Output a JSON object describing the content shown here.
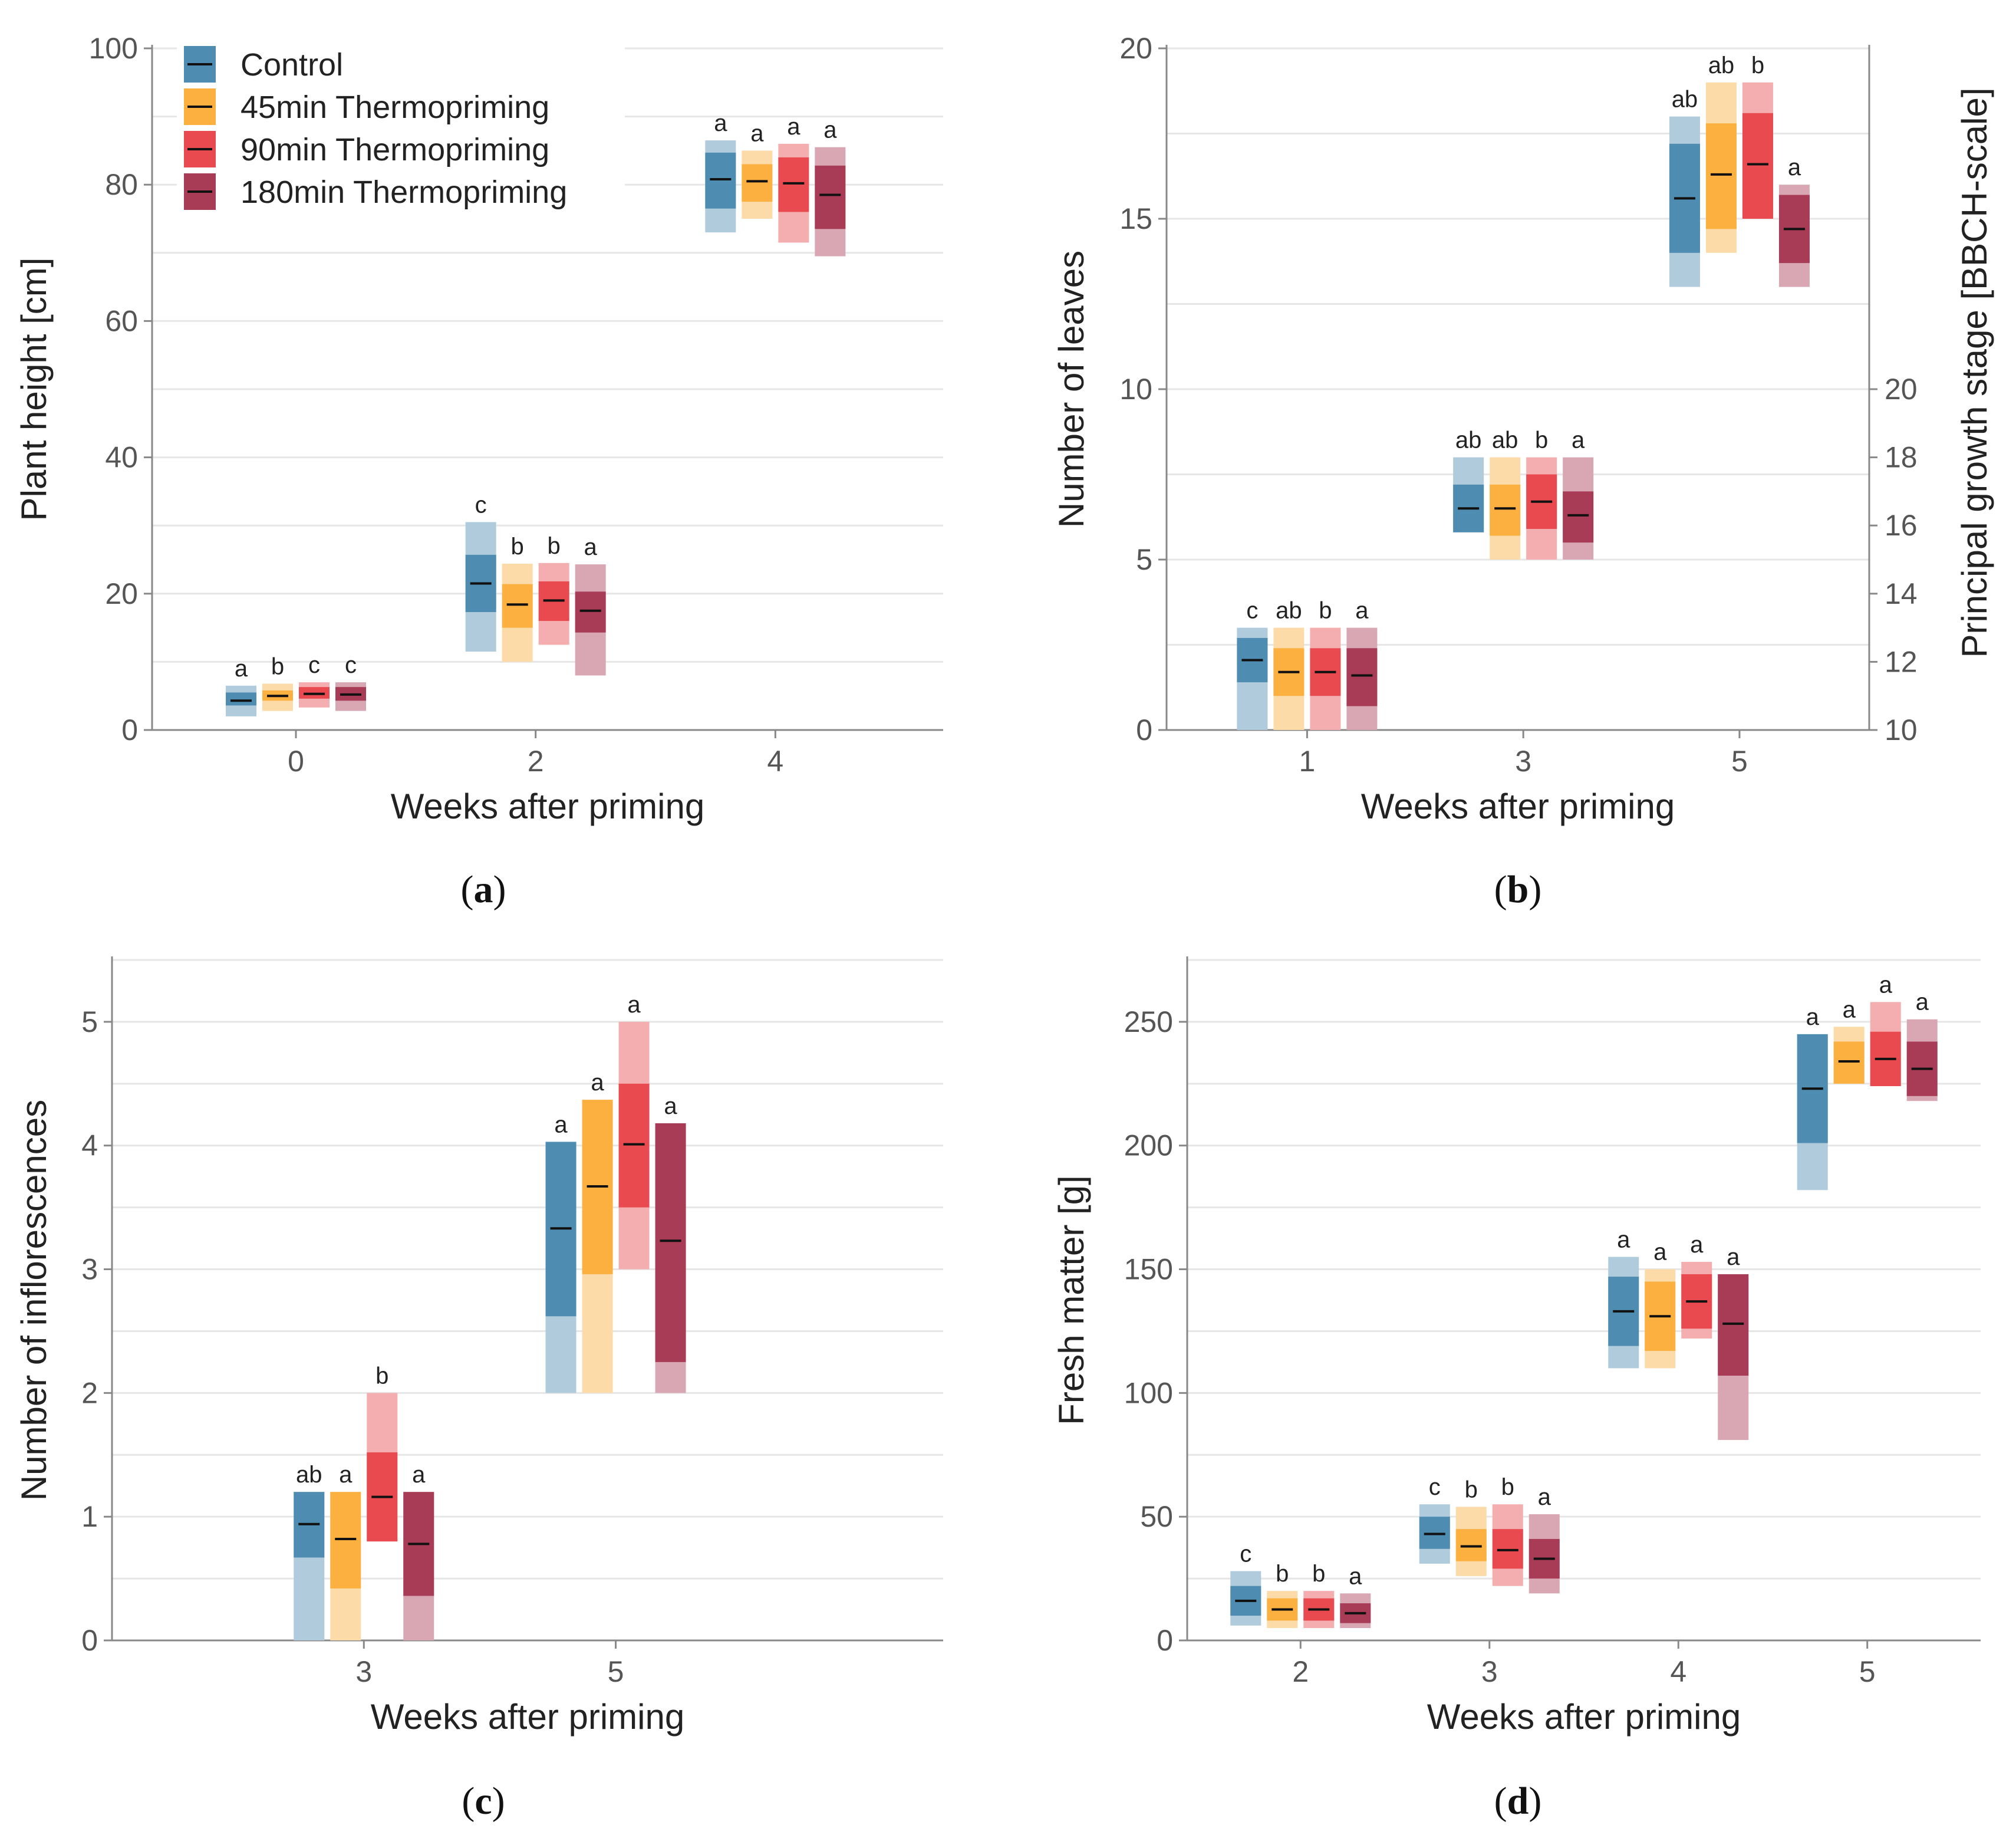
{
  "colors": {
    "Control": "#4e8cb1",
    "45min Thermopriming": "#fbb040",
    "90min Thermopriming": "#e84a4f",
    "180min Thermopriming": "#a83b55",
    "grid": "#e6e6e6",
    "axis": "#888888"
  },
  "legend": {
    "entries": [
      "Control",
      "45min Thermopriming",
      "90min Thermopriming",
      "180min Thermopriming"
    ]
  },
  "chart_data": [
    {
      "id": "a",
      "panel_label": "a",
      "type": "bar",
      "xlabel": "Weeks after priming",
      "ylabel": "Plant height [cm]",
      "ylim": [
        0,
        100
      ],
      "yticks": [
        0,
        20,
        40,
        60,
        80,
        100
      ],
      "xlim": [
        -1.2,
        5.4
      ],
      "xticks": [
        0,
        2,
        4
      ],
      "groups": [
        {
          "x": 0,
          "letters": [
            "a",
            "b",
            "c",
            "c"
          ],
          "series": [
            {
              "name": "Control",
              "min": 2,
              "q1": 3.6,
              "median": 4.3,
              "q3": 5.5,
              "max": 6.5
            },
            {
              "name": "45min Thermopriming",
              "min": 2.8,
              "q1": 4.3,
              "median": 5,
              "q3": 5.8,
              "max": 6.8
            },
            {
              "name": "90min Thermopriming",
              "min": 3.3,
              "q1": 4.6,
              "median": 5.3,
              "q3": 6.3,
              "max": 7
            },
            {
              "name": "180min Thermopriming",
              "min": 2.8,
              "q1": 4.3,
              "median": 5.2,
              "q3": 6.3,
              "max": 7
            }
          ]
        },
        {
          "x": 2,
          "letters": [
            "c",
            "b",
            "b",
            "a"
          ],
          "series": [
            {
              "name": "Control",
              "min": 11.5,
              "q1": 17.3,
              "median": 21.5,
              "q3": 25.7,
              "max": 30.5
            },
            {
              "name": "45min Thermopriming",
              "min": 10,
              "q1": 15,
              "median": 18.4,
              "q3": 21.4,
              "max": 24.4
            },
            {
              "name": "90min Thermopriming",
              "min": 12.5,
              "q1": 16,
              "median": 19,
              "q3": 21.8,
              "max": 24.5
            },
            {
              "name": "180min Thermopriming",
              "min": 8,
              "q1": 14.3,
              "median": 17.5,
              "q3": 20.3,
              "max": 24.3
            }
          ]
        },
        {
          "x": 4,
          "letters": [
            "a",
            "a",
            "a",
            "a"
          ],
          "series": [
            {
              "name": "Control",
              "min": 73,
              "q1": 76.5,
              "median": 80.8,
              "q3": 84.7,
              "max": 86.5
            },
            {
              "name": "45min Thermopriming",
              "min": 75,
              "q1": 77.5,
              "median": 80.5,
              "q3": 83,
              "max": 85
            },
            {
              "name": "90min Thermopriming",
              "min": 71.5,
              "q1": 76,
              "median": 80.2,
              "q3": 84,
              "max": 86
            },
            {
              "name": "180min Thermopriming",
              "min": 69.5,
              "q1": 73.5,
              "median": 78.5,
              "q3": 82.8,
              "max": 85.5
            }
          ]
        }
      ]
    },
    {
      "id": "b",
      "panel_label": "b",
      "type": "bar",
      "xlabel": "Weeks after priming",
      "ylabel": "Number of leaves",
      "y2label": "Principal growth stage [BBCH-scale]",
      "ylim": [
        0,
        20
      ],
      "yticks": [
        0,
        5,
        10,
        15,
        20
      ],
      "y2ticks": [
        10,
        12,
        14,
        16,
        18,
        20
      ],
      "xlim": [
        -0.3,
        6.2
      ],
      "xticks": [
        1,
        3,
        5
      ],
      "groups": [
        {
          "x": 1,
          "letters": [
            "c",
            "ab",
            "b",
            "a"
          ],
          "series": [
            {
              "name": "Control",
              "min": 0,
              "q1": 1.4,
              "median": 2.05,
              "q3": 2.7,
              "max": 3
            },
            {
              "name": "45min Thermopriming",
              "min": 0,
              "q1": 1,
              "median": 1.7,
              "q3": 2.4,
              "max": 3
            },
            {
              "name": "90min Thermopriming",
              "min": 0,
              "q1": 1,
              "median": 1.7,
              "q3": 2.4,
              "max": 3
            },
            {
              "name": "180min Thermopriming",
              "min": 0,
              "q1": 0.7,
              "median": 1.6,
              "q3": 2.4,
              "max": 3
            }
          ]
        },
        {
          "x": 3,
          "letters": [
            "ab",
            "ab",
            "b",
            "a"
          ],
          "series": [
            {
              "name": "Control",
              "min": 5.8,
              "q1": 5.8,
              "median": 6.5,
              "q3": 7.2,
              "max": 8
            },
            {
              "name": "45min Thermopriming",
              "min": 5,
              "q1": 5.7,
              "median": 6.5,
              "q3": 7.2,
              "max": 8
            },
            {
              "name": "90min Thermopriming",
              "min": 5,
              "q1": 5.9,
              "median": 6.7,
              "q3": 7.5,
              "max": 8
            },
            {
              "name": "180min Thermopriming",
              "min": 5,
              "q1": 5.5,
              "median": 6.3,
              "q3": 7,
              "max": 8
            }
          ]
        },
        {
          "x": 5,
          "letters": [
            "ab",
            "ab",
            "b",
            "a"
          ],
          "series": [
            {
              "name": "Control",
              "min": 13,
              "q1": 14,
              "median": 15.6,
              "q3": 17.2,
              "max": 18
            },
            {
              "name": "45min Thermopriming",
              "min": 14,
              "q1": 14.7,
              "median": 16.3,
              "q3": 17.8,
              "max": 19
            },
            {
              "name": "90min Thermopriming",
              "min": 15,
              "q1": 15,
              "median": 16.6,
              "q3": 18.1,
              "max": 19
            },
            {
              "name": "180min Thermopriming",
              "min": 13,
              "q1": 13.7,
              "median": 14.7,
              "q3": 15.7,
              "max": 16
            }
          ]
        }
      ]
    },
    {
      "id": "c",
      "panel_label": "c",
      "type": "bar",
      "xlabel": "Weeks after priming",
      "ylabel": "Number of inflorescences",
      "ylim": [
        0,
        5.5
      ],
      "yticks": [
        0,
        1,
        2,
        3,
        4,
        5
      ],
      "xlim": [
        1.0,
        7.6
      ],
      "xticks": [
        3,
        5
      ],
      "groups": [
        {
          "x": 3,
          "letters": [
            "ab",
            "a",
            "b",
            "a"
          ],
          "series": [
            {
              "name": "Control",
              "min": 0,
              "q1": 0.67,
              "median": 0.94,
              "q3": 1.2,
              "max": 1.2
            },
            {
              "name": "45min Thermopriming",
              "min": 0,
              "q1": 0.42,
              "median": 0.82,
              "q3": 1.2,
              "max": 1.2
            },
            {
              "name": "90min Thermopriming",
              "min": 0.8,
              "q1": 0.8,
              "median": 1.16,
              "q3": 1.52,
              "max": 2
            },
            {
              "name": "180min Thermopriming",
              "min": 0,
              "q1": 0.36,
              "median": 0.78,
              "q3": 1.2,
              "max": 1.2
            }
          ]
        },
        {
          "x": 5,
          "letters": [
            "a",
            "a",
            "a",
            "a"
          ],
          "series": [
            {
              "name": "Control",
              "min": 2,
              "q1": 2.62,
              "median": 3.33,
              "q3": 4.03,
              "max": 4.03
            },
            {
              "name": "45min Thermopriming",
              "min": 2,
              "q1": 2.96,
              "median": 3.67,
              "q3": 4.37,
              "max": 4.37
            },
            {
              "name": "90min Thermopriming",
              "min": 3,
              "q1": 3.5,
              "median": 4.01,
              "q3": 4.5,
              "max": 5
            },
            {
              "name": "180min Thermopriming",
              "min": 2,
              "q1": 2.25,
              "median": 3.23,
              "q3": 4.18,
              "max": 4.18
            }
          ]
        }
      ]
    },
    {
      "id": "d",
      "panel_label": "d",
      "type": "bar",
      "xlabel": "Weeks after priming",
      "ylabel": "Fresh matter [g]",
      "ylim": [
        0,
        275
      ],
      "yticks": [
        0,
        50,
        100,
        150,
        200,
        250
      ],
      "xlim": [
        1.4,
        5.6
      ],
      "xticks": [
        2,
        3,
        4,
        5
      ],
      "groups": [
        {
          "x": 2,
          "letters": [
            "c",
            "b",
            "b",
            "a"
          ],
          "series": [
            {
              "name": "Control",
              "min": 6,
              "q1": 10,
              "median": 16,
              "q3": 22,
              "max": 28
            },
            {
              "name": "45min Thermopriming",
              "min": 5,
              "q1": 8,
              "median": 12.5,
              "q3": 17,
              "max": 20
            },
            {
              "name": "90min Thermopriming",
              "min": 5,
              "q1": 8,
              "median": 12.5,
              "q3": 17,
              "max": 20
            },
            {
              "name": "180min Thermopriming",
              "min": 5,
              "q1": 7,
              "median": 11,
              "q3": 15,
              "max": 19
            }
          ]
        },
        {
          "x": 3,
          "letters": [
            "c",
            "b",
            "b",
            "a"
          ],
          "series": [
            {
              "name": "Control",
              "min": 31,
              "q1": 37,
              "median": 43,
              "q3": 50,
              "max": 55
            },
            {
              "name": "45min Thermopriming",
              "min": 26,
              "q1": 32,
              "median": 38,
              "q3": 45,
              "max": 54
            },
            {
              "name": "90min Thermopriming",
              "min": 22,
              "q1": 29,
              "median": 36.5,
              "q3": 45,
              "max": 55
            },
            {
              "name": "180min Thermopriming",
              "min": 19,
              "q1": 25,
              "median": 33,
              "q3": 41,
              "max": 51
            }
          ]
        },
        {
          "x": 4,
          "letters": [
            "a",
            "a",
            "a",
            "a"
          ],
          "series": [
            {
              "name": "Control",
              "min": 110,
              "q1": 119,
              "median": 133,
              "q3": 147,
              "max": 155
            },
            {
              "name": "45min Thermopriming",
              "min": 110,
              "q1": 117,
              "median": 131,
              "q3": 145,
              "max": 150
            },
            {
              "name": "90min Thermopriming",
              "min": 122,
              "q1": 126,
              "median": 137,
              "q3": 148,
              "max": 153
            },
            {
              "name": "180min Thermopriming",
              "min": 81,
              "q1": 107,
              "median": 128,
              "q3": 148,
              "max": 148
            }
          ]
        },
        {
          "x": 5,
          "letters": [
            "a",
            "a",
            "a",
            "a"
          ],
          "series": [
            {
              "name": "Control",
              "min": 182,
              "q1": 201,
              "median": 223,
              "q3": 245,
              "max": 245
            },
            {
              "name": "45min Thermopriming",
              "min": 225,
              "q1": 225,
              "median": 234,
              "q3": 242,
              "max": 248
            },
            {
              "name": "90min Thermopriming",
              "min": 224,
              "q1": 224,
              "median": 235,
              "q3": 246,
              "max": 258
            },
            {
              "name": "180min Thermopriming",
              "min": 218,
              "q1": 220,
              "median": 231,
              "q3": 242,
              "max": 251
            }
          ]
        }
      ]
    }
  ]
}
